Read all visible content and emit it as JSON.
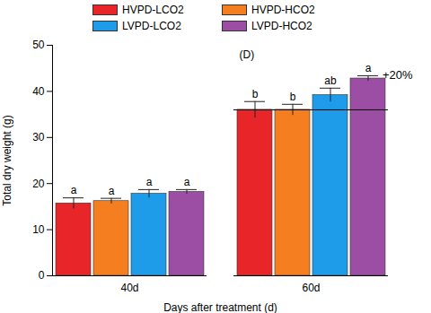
{
  "chart_data": {
    "type": "bar",
    "title": "(D)",
    "x_label": "Days after treatment (d)",
    "y_label": "Total dry weight (g)",
    "categories": [
      "40d",
      "60d"
    ],
    "series": [
      {
        "name": "HVPD-LCO2",
        "color": "#e8262a",
        "values": [
          15.7,
          36.0
        ],
        "errors": [
          1.2,
          1.8
        ],
        "letters": [
          "a",
          "b"
        ]
      },
      {
        "name": "HVPD-HCO2",
        "color": "#f57f20",
        "values": [
          16.2,
          36.0
        ],
        "errors": [
          0.6,
          1.2
        ],
        "letters": [
          "a",
          "b"
        ]
      },
      {
        "name": "LVPD-LCO2",
        "color": "#1e9be9",
        "values": [
          17.8,
          39.2
        ],
        "errors": [
          0.9,
          1.5
        ],
        "letters": [
          "a",
          "ab"
        ]
      },
      {
        "name": "LVPD-HCO2",
        "color": "#9b4ea3",
        "values": [
          18.2,
          42.8
        ],
        "errors": [
          0.5,
          0.6
        ],
        "letters": [
          "a",
          "a"
        ]
      }
    ],
    "annotations": [
      {
        "text": "+20%",
        "category": "60d",
        "base": "HVPD-LCO2",
        "target": "LVPD-HCO2"
      }
    ],
    "ylim": [
      0,
      50
    ],
    "yticks": [
      0,
      10,
      20,
      30,
      40,
      50
    ],
    "legend": "top"
  }
}
